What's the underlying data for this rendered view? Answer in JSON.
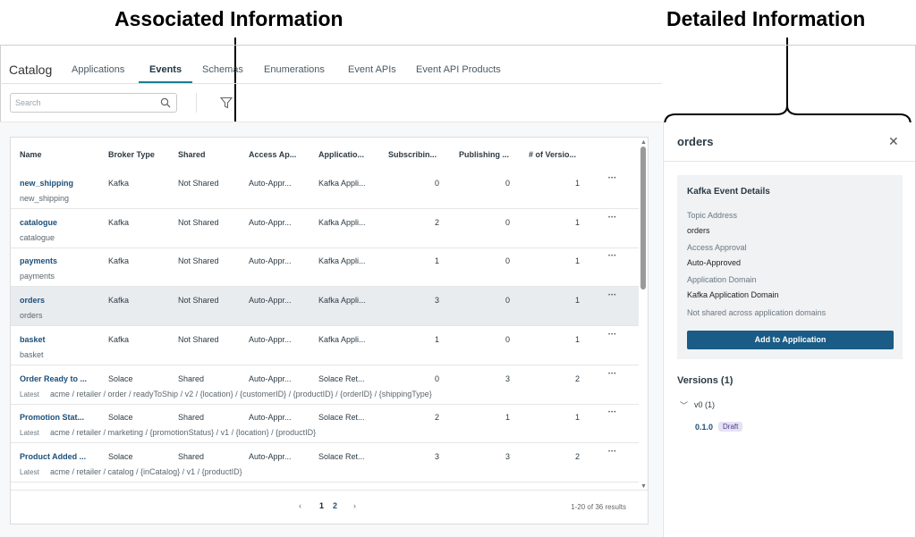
{
  "annotations": {
    "left": "Associated Information",
    "right": "Detailed Information"
  },
  "nav": {
    "catalog": "Catalog",
    "tabs": [
      "Applications",
      "Events",
      "Schemas",
      "Enumerations",
      "Event APIs",
      "Event API Products"
    ],
    "active_tab": "Events"
  },
  "search": {
    "placeholder": "Search"
  },
  "table": {
    "headers": [
      "Name",
      "Broker Type",
      "Shared",
      "Access Ap...",
      "Applicatio...",
      "Subscribin...",
      "Publishing ...",
      "# of Versio..."
    ],
    "rows": [
      {
        "name": "new_shipping",
        "sub": "new_shipping",
        "broker": "Kafka",
        "shared": "Not Shared",
        "access": "Auto-Appr...",
        "app": "Kafka Appli...",
        "subs": "0",
        "pubs": "0",
        "versions": "1"
      },
      {
        "name": "catalogue",
        "sub": "catalogue",
        "broker": "Kafka",
        "shared": "Not Shared",
        "access": "Auto-Appr...",
        "app": "Kafka Appli...",
        "subs": "2",
        "pubs": "0",
        "versions": "1"
      },
      {
        "name": "payments",
        "sub": "payments",
        "broker": "Kafka",
        "shared": "Not Shared",
        "access": "Auto-Appr...",
        "app": "Kafka Appli...",
        "subs": "1",
        "pubs": "0",
        "versions": "1"
      },
      {
        "name": "orders",
        "sub": "orders",
        "broker": "Kafka",
        "shared": "Not Shared",
        "access": "Auto-Appr...",
        "app": "Kafka Appli...",
        "subs": "3",
        "pubs": "0",
        "versions": "1"
      },
      {
        "name": "basket",
        "sub": "basket",
        "broker": "Kafka",
        "shared": "Not Shared",
        "access": "Auto-Appr...",
        "app": "Kafka Appli...",
        "subs": "1",
        "pubs": "0",
        "versions": "1"
      },
      {
        "name": "Order Ready to ...",
        "latest": "Latest",
        "sub": "acme / retailer / order / readyToShip / v2 / {location} / {customerID} / {productID} / {orderID} / {shippingType}",
        "broker": "Solace",
        "shared": "Shared",
        "access": "Auto-Appr...",
        "app": "Solace Ret...",
        "subs": "0",
        "pubs": "3",
        "versions": "2"
      },
      {
        "name": "Promotion Stat...",
        "latest": "Latest",
        "sub": "acme / retailer / marketing / {promotionStatus} / v1 / {location} / {productID}",
        "broker": "Solace",
        "shared": "Shared",
        "access": "Auto-Appr...",
        "app": "Solace Ret...",
        "subs": "2",
        "pubs": "1",
        "versions": "1"
      },
      {
        "name": "Product Added ...",
        "latest": "Latest",
        "sub": "acme / retailer / catalog / {inCatalog} / v1 / {productID}",
        "broker": "Solace",
        "shared": "Shared",
        "access": "Auto-Appr...",
        "app": "Solace Ret...",
        "subs": "3",
        "pubs": "3",
        "versions": "2"
      }
    ],
    "selected_row": 3
  },
  "pager": {
    "prev": "‹",
    "pages": [
      "1",
      "2"
    ],
    "current": "1",
    "next": "›",
    "results": "1-20 of 36 results"
  },
  "detail": {
    "title": "orders",
    "close": "✕",
    "section_title": "Kafka Event Details",
    "topic_label": "Topic Address",
    "topic_value": "orders",
    "approval_label": "Access Approval",
    "approval_value": "Auto-Approved",
    "domain_label": "Application Domain",
    "domain_value": "Kafka Application Domain",
    "shared_note": "Not shared across application domains",
    "add_button": "Add to Application",
    "versions_title": "Versions (1)",
    "version_group": "v0 (1)",
    "version": "0.1.0",
    "version_state": "Draft"
  },
  "colors": {
    "accent": "#1a7f8e",
    "primary_button": "#1a5c85",
    "link": "#1b4f7a"
  }
}
